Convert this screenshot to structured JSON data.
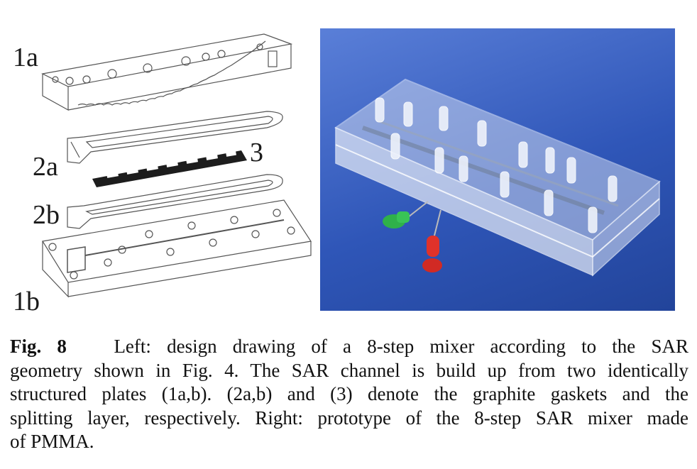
{
  "labels": {
    "l1a": "1a",
    "l2a": "2a",
    "l3": "3",
    "l2b": "2b",
    "l1b": "1b"
  },
  "caption": {
    "fig_label": "Fig. 8",
    "line1": "Left: design drawing of a 8-step mixer according to the SAR",
    "line2": "geometry shown in Fig. 4. The SAR channel is build up from two identically",
    "line3": "structured plates (1a,b). (2a,b) and (3) denote the graphite gaskets and the",
    "line4": "splitting layer, respectively. Right: prototype of the 8-step SAR mixer made",
    "line5": "of PMMA."
  }
}
